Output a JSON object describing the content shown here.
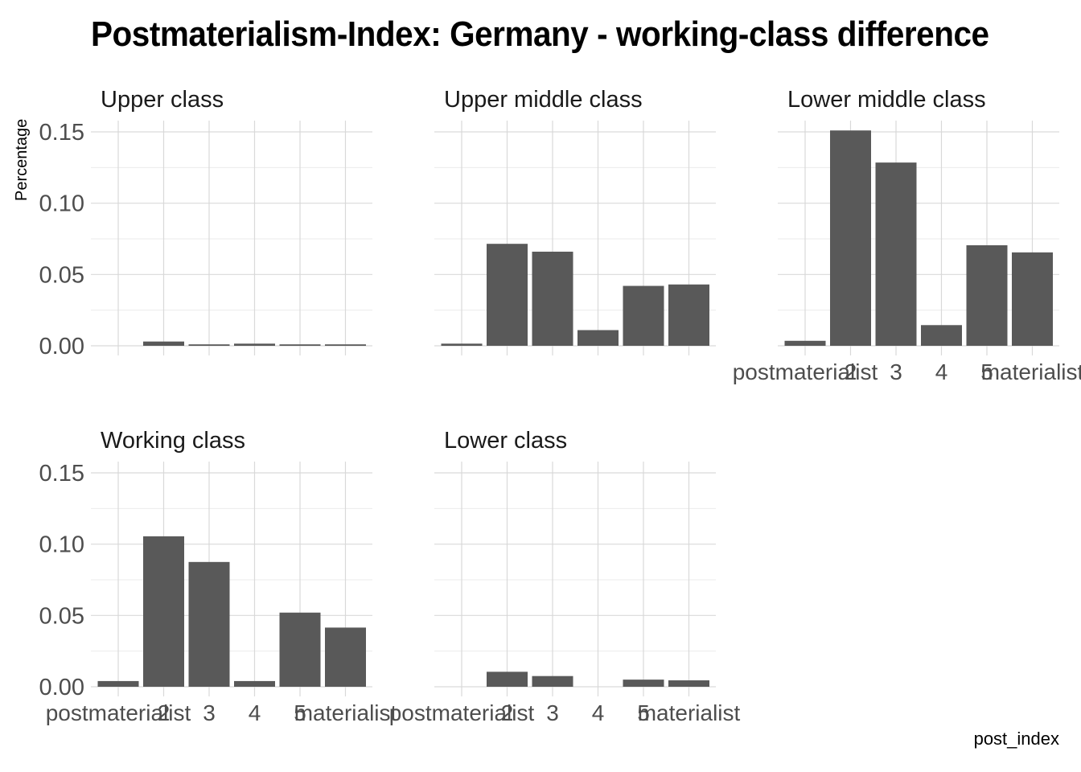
{
  "chart_data": {
    "type": "bar",
    "title": "Postmaterialism-Index: Germany - working-class difference",
    "xlabel": "post_index",
    "ylabel": "Percentage",
    "categories": [
      "postmaterialist",
      "2",
      "3",
      "4",
      "5",
      "materialist"
    ],
    "ylim": [
      0,
      0.16
    ],
    "yticks": [
      "0.00",
      "0.05",
      "0.10",
      "0.15"
    ],
    "grid": true,
    "bar_color": "#595959",
    "facets": [
      {
        "name": "Upper class",
        "values": [
          0.0,
          0.003,
          0.001,
          0.0015,
          0.001,
          0.001
        ]
      },
      {
        "name": "Upper middle class",
        "values": [
          0.0015,
          0.0715,
          0.066,
          0.011,
          0.042,
          0.043
        ]
      },
      {
        "name": "Lower middle class",
        "values": [
          0.0035,
          0.151,
          0.1285,
          0.0145,
          0.0705,
          0.0655
        ]
      },
      {
        "name": "Working class",
        "values": [
          0.004,
          0.1055,
          0.0875,
          0.004,
          0.052,
          0.0415
        ]
      },
      {
        "name": "Lower class",
        "values": [
          0.0,
          0.0105,
          0.0075,
          0.0,
          0.005,
          0.0045
        ]
      }
    ]
  }
}
